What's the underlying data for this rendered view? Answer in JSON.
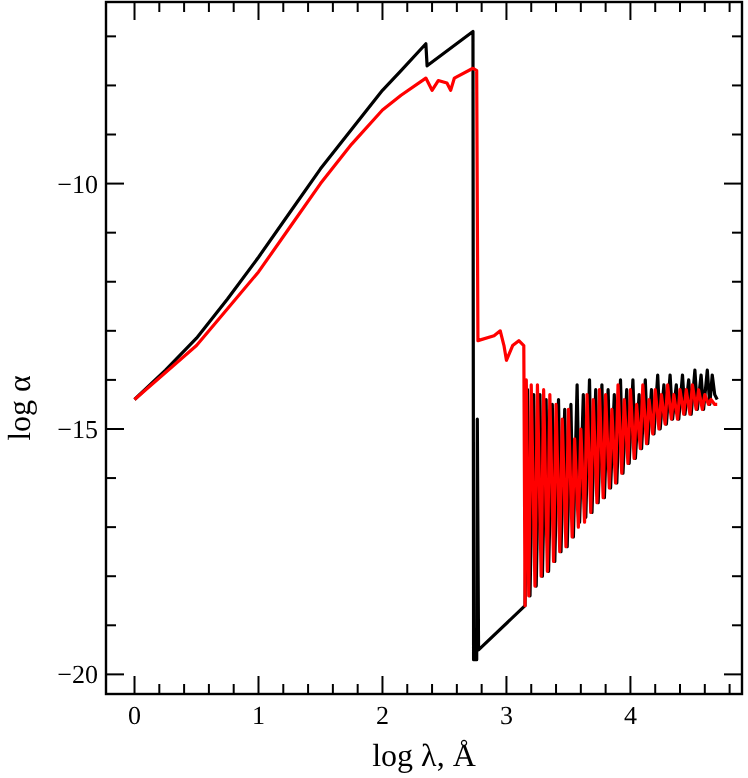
{
  "chart_data": {
    "type": "line",
    "xlabel": "log λ, Å",
    "ylabel": "log α",
    "xlim": [
      -0.23,
      4.9
    ],
    "ylim": [
      -20.4,
      -6.3
    ],
    "xticks": [
      0,
      {
        "value": 0.2,
        "label": null
      },
      {
        "value": 0.4,
        "label": null
      },
      {
        "value": 0.6,
        "label": null
      },
      {
        "value": 0.8,
        "label": null
      },
      1,
      {
        "value": 1.2,
        "label": null
      },
      {
        "value": 1.4,
        "label": null
      },
      {
        "value": 1.6,
        "label": null
      },
      {
        "value": 1.8,
        "label": null
      },
      2,
      {
        "value": 2.2,
        "label": null
      },
      {
        "value": 2.4,
        "label": null
      },
      {
        "value": 2.6,
        "label": null
      },
      {
        "value": 2.8,
        "label": null
      },
      3,
      {
        "value": 3.2,
        "label": null
      },
      {
        "value": 3.4,
        "label": null
      },
      {
        "value": 3.6,
        "label": null
      },
      {
        "value": 3.8,
        "label": null
      },
      4,
      {
        "value": 4.2,
        "label": null
      },
      {
        "value": 4.4,
        "label": null
      },
      {
        "value": 4.6,
        "label": null
      },
      {
        "value": 4.8,
        "label": null
      }
    ],
    "yticks": [
      -20,
      {
        "value": -19,
        "label": null
      },
      {
        "value": -18,
        "label": null
      },
      {
        "value": -17,
        "label": null
      },
      {
        "value": -16,
        "label": null
      },
      -15,
      {
        "value": -14,
        "label": null
      },
      {
        "value": -13,
        "label": null
      },
      {
        "value": -12,
        "label": null
      },
      {
        "value": -11,
        "label": null
      },
      -10,
      {
        "value": -9,
        "label": null
      },
      {
        "value": -8,
        "label": null
      },
      {
        "value": -7,
        "label": null
      }
    ],
    "grid": false,
    "marker": "none",
    "line_style": "solid",
    "series": [
      {
        "color": "#000000",
        "x": [
          0,
          0.25,
          0.5,
          0.75,
          1,
          1.25,
          1.5,
          1.75,
          2,
          2.15,
          2.35,
          2.36,
          2.73,
          2.735,
          2.76,
          2.765,
          2.775,
          3.15,
          3.17,
          3.19,
          3.22,
          3.24,
          3.27,
          3.29,
          3.32,
          3.34,
          3.37,
          3.39,
          3.42,
          3.44,
          3.47,
          3.49,
          3.52,
          3.54,
          3.57,
          3.59,
          3.62,
          3.64,
          3.67,
          3.69,
          3.72,
          3.74,
          3.77,
          3.79,
          3.82,
          3.84,
          3.87,
          3.89,
          3.92,
          3.94,
          3.97,
          3.99,
          4.02,
          4.04,
          4.07,
          4.09,
          4.12,
          4.14,
          4.17,
          4.19,
          4.22,
          4.24,
          4.27,
          4.29,
          4.32,
          4.34,
          4.37,
          4.39,
          4.42,
          4.44,
          4.47,
          4.49,
          4.52,
          4.54,
          4.57,
          4.59,
          4.62,
          4.64,
          4.66,
          4.68,
          4.7
        ],
        "values": [
          -14.4,
          -13.8,
          -13.15,
          -12.35,
          -11.5,
          -10.6,
          -9.7,
          -8.9,
          -8.1,
          -7.7,
          -7.15,
          -7.6,
          -6.9,
          -19.7,
          -19.7,
          -14.8,
          -19.5,
          -18.6,
          -14.2,
          -18.4,
          -14.3,
          -18.2,
          -14.3,
          -18.0,
          -14.4,
          -17.9,
          -14.5,
          -17.7,
          -14.4,
          -17.5,
          -14.6,
          -17.4,
          -14.5,
          -17.2,
          -14.1,
          -16.9,
          -14.3,
          -16.8,
          -14.0,
          -16.7,
          -14.2,
          -16.5,
          -14.1,
          -16.4,
          -14.2,
          -16.2,
          -14.3,
          -16.1,
          -14.0,
          -15.9,
          -14.2,
          -15.7,
          -14.0,
          -15.6,
          -14.3,
          -15.4,
          -14.0,
          -15.3,
          -14.2,
          -15.1,
          -13.9,
          -15.0,
          -14.1,
          -14.9,
          -13.9,
          -14.8,
          -14.1,
          -14.8,
          -13.9,
          -14.7,
          -14.0,
          -14.7,
          -13.8,
          -14.6,
          -13.9,
          -14.6,
          -13.8,
          -14.5,
          -13.9,
          -14.3,
          -14.4
        ]
      },
      {
        "color": "#ff0000",
        "x": [
          0,
          0.25,
          0.5,
          0.75,
          1,
          1.25,
          1.5,
          1.75,
          2,
          2.15,
          2.35,
          2.4,
          2.45,
          2.52,
          2.55,
          2.58,
          2.73,
          2.76,
          2.77,
          2.9,
          2.95,
          2.98,
          3.0,
          3.05,
          3.1,
          3.14,
          3.15,
          3.16,
          3.18,
          3.2,
          3.23,
          3.25,
          3.28,
          3.3,
          3.33,
          3.35,
          3.38,
          3.4,
          3.43,
          3.45,
          3.48,
          3.5,
          3.53,
          3.55,
          3.58,
          3.6,
          3.63,
          3.65,
          3.68,
          3.7,
          3.73,
          3.75,
          3.78,
          3.8,
          3.83,
          3.85,
          3.88,
          3.9,
          3.93,
          3.95,
          3.98,
          4.0,
          4.03,
          4.05,
          4.08,
          4.1,
          4.13,
          4.15,
          4.18,
          4.2,
          4.23,
          4.25,
          4.28,
          4.3,
          4.33,
          4.35,
          4.38,
          4.4,
          4.43,
          4.45,
          4.48,
          4.5,
          4.53,
          4.55,
          4.58,
          4.6,
          4.63,
          4.65,
          4.68,
          4.7
        ],
        "values": [
          -14.4,
          -13.85,
          -13.3,
          -12.55,
          -11.8,
          -10.9,
          -10.0,
          -9.2,
          -8.5,
          -8.2,
          -7.85,
          -8.1,
          -7.9,
          -7.95,
          -8.1,
          -7.85,
          -7.65,
          -7.7,
          -13.2,
          -13.1,
          -13.0,
          -13.3,
          -13.6,
          -13.3,
          -13.2,
          -13.3,
          -18.6,
          -14.0,
          -18.4,
          -14.1,
          -18.2,
          -14.1,
          -18.0,
          -14.2,
          -17.9,
          -14.3,
          -17.7,
          -14.5,
          -17.5,
          -14.8,
          -17.4,
          -14.6,
          -17.2,
          -15.2,
          -17.0,
          -15.0,
          -16.9,
          -14.3,
          -16.7,
          -14.4,
          -16.5,
          -14.2,
          -16.4,
          -14.3,
          -16.2,
          -14.6,
          -16.1,
          -14.1,
          -15.9,
          -14.4,
          -15.7,
          -14.2,
          -15.6,
          -14.5,
          -15.4,
          -14.1,
          -15.3,
          -14.4,
          -15.1,
          -14.2,
          -15.0,
          -14.3,
          -14.9,
          -14.1,
          -14.8,
          -14.3,
          -14.8,
          -14.2,
          -14.7,
          -14.2,
          -14.7,
          -14.1,
          -14.6,
          -14.2,
          -14.6,
          -14.3,
          -14.5,
          -14.4,
          -14.5,
          -14.5
        ]
      }
    ]
  }
}
